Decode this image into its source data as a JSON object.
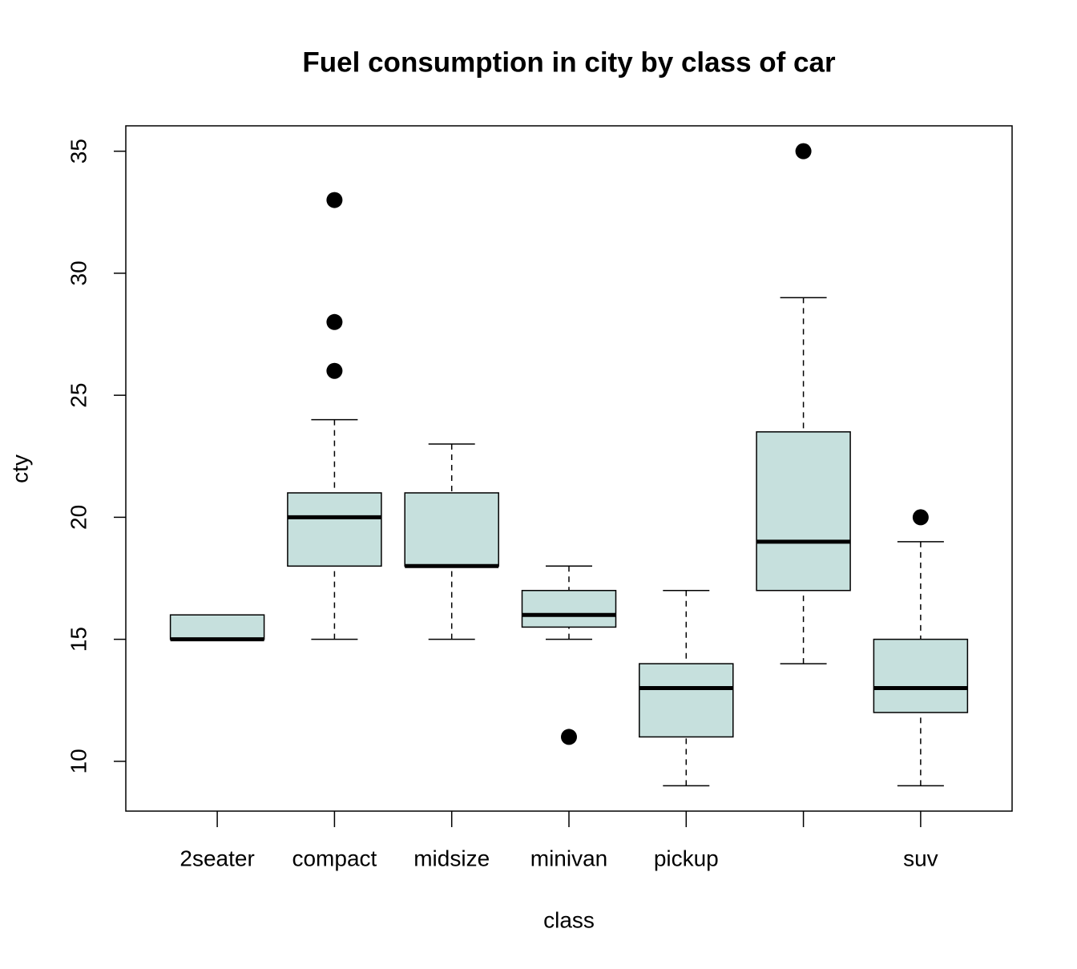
{
  "chart_data": {
    "type": "box",
    "title": "Fuel consumption in city by class of car",
    "x_label": "class",
    "y_label": "cty",
    "categories": [
      "2seater",
      "compact",
      "midsize",
      "minivan",
      "pickup",
      null,
      "suv"
    ],
    "whisker_low": [
      15,
      15,
      15,
      15,
      9,
      14,
      9
    ],
    "q1": [
      15,
      18,
      18,
      15.5,
      11,
      17,
      12
    ],
    "median": [
      15,
      20,
      18,
      16,
      13,
      19,
      13
    ],
    "q3": [
      16,
      21,
      21,
      17,
      14,
      23.5,
      15
    ],
    "whisker_high": [
      16,
      24,
      23,
      18,
      17,
      29,
      19
    ],
    "outliers": [
      [],
      [
        26,
        28,
        33
      ],
      [],
      [
        11
      ],
      [],
      [
        35
      ],
      [
        20
      ]
    ],
    "color": "#c6e0dd",
    "ylim": [
      7.96,
      36.04
    ],
    "yticks": [
      10,
      15,
      20,
      25,
      30,
      35
    ]
  }
}
